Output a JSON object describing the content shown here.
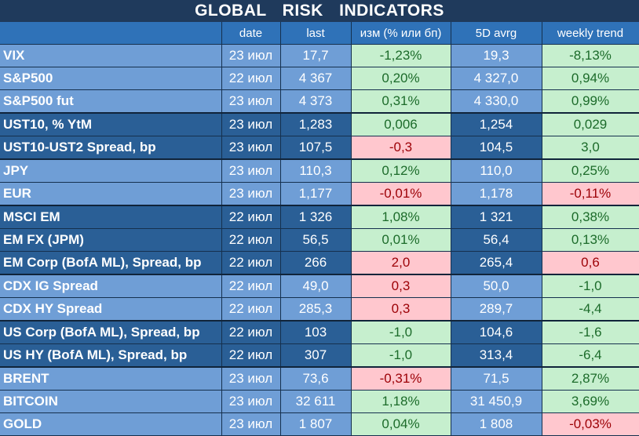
{
  "title": "GLOBAL   RISK   INDICATORS",
  "headers": [
    "",
    "date",
    "last",
    "изм (% или бп)",
    "5D avrg",
    "weekly trend"
  ],
  "rows": [
    {
      "name": "VIX",
      "date": "23 июл",
      "last": "17,7",
      "chg": "-1,23%",
      "chg_sign": "pos",
      "avg": "19,3",
      "wk": "-8,13%",
      "wk_sign": "pos",
      "group": "g-light",
      "sep": false
    },
    {
      "name": "S&P500",
      "date": "22 июл",
      "last": "4 367",
      "chg": "0,20%",
      "chg_sign": "pos",
      "avg": "4 327,0",
      "wk": "0,94%",
      "wk_sign": "pos",
      "group": "g-light",
      "sep": false
    },
    {
      "name": "S&P500 fut",
      "date": "23 июл",
      "last": "4 373",
      "chg": "0,31%",
      "chg_sign": "pos",
      "avg": "4 330,0",
      "wk": "0,99%",
      "wk_sign": "pos",
      "group": "g-light",
      "sep": false
    },
    {
      "name": "UST10, % YtM",
      "date": "23 июл",
      "last": "1,283",
      "chg": "0,006",
      "chg_sign": "pos",
      "avg": "1,254",
      "wk": "0,029",
      "wk_sign": "pos",
      "group": "g-dark",
      "sep": true
    },
    {
      "name": "UST10-UST2 Spread, bp",
      "date": "23 июл",
      "last": "107,5",
      "chg": "-0,3",
      "chg_sign": "neg",
      "avg": "104,5",
      "wk": "3,0",
      "wk_sign": "pos",
      "group": "g-dark",
      "sep": false
    },
    {
      "name": "JPY",
      "date": "23 июл",
      "last": "110,3",
      "chg": "0,12%",
      "chg_sign": "pos",
      "avg": "110,0",
      "wk": "0,25%",
      "wk_sign": "pos",
      "group": "g-light",
      "sep": true
    },
    {
      "name": "EUR",
      "date": "23 июл",
      "last": "1,177",
      "chg": "-0,01%",
      "chg_sign": "neg",
      "avg": "1,178",
      "wk": "-0,11%",
      "wk_sign": "neg",
      "group": "g-light",
      "sep": false
    },
    {
      "name": "MSCI EM",
      "date": "22 июл",
      "last": "1 326",
      "chg": "1,08%",
      "chg_sign": "pos",
      "avg": "1 321",
      "wk": "0,38%",
      "wk_sign": "pos",
      "group": "g-dark",
      "sep": true
    },
    {
      "name": "EM FX (JPM)",
      "date": "22 июл",
      "last": "56,5",
      "chg": "0,01%",
      "chg_sign": "pos",
      "avg": "56,4",
      "wk": "0,13%",
      "wk_sign": "pos",
      "group": "g-dark",
      "sep": false
    },
    {
      "name": "EM Corp (BofA ML), Spread, bp",
      "date": "22 июл",
      "last": "266",
      "chg": "2,0",
      "chg_sign": "neg",
      "avg": "265,4",
      "wk": "0,6",
      "wk_sign": "neg",
      "group": "g-dark",
      "sep": false
    },
    {
      "name": "CDX IG Spread",
      "date": "22 июл",
      "last": "49,0",
      "chg": "0,3",
      "chg_sign": "neg",
      "avg": "50,0",
      "wk": "-1,0",
      "wk_sign": "pos",
      "group": "g-light",
      "sep": true
    },
    {
      "name": "CDX HY Spread",
      "date": "22 июл",
      "last": "285,3",
      "chg": "0,3",
      "chg_sign": "neg",
      "avg": "289,7",
      "wk": "-4,4",
      "wk_sign": "pos",
      "group": "g-light",
      "sep": false
    },
    {
      "name": "US Corp (BofA ML), Spread, bp",
      "date": "22 июл",
      "last": "103",
      "chg": "-1,0",
      "chg_sign": "pos",
      "avg": "104,6",
      "wk": "-1,6",
      "wk_sign": "pos",
      "group": "g-dark",
      "sep": true
    },
    {
      "name": "US HY (BofA ML), Spread, bp",
      "date": "22 июл",
      "last": "307",
      "chg": "-1,0",
      "chg_sign": "pos",
      "avg": "313,4",
      "wk": "-6,4",
      "wk_sign": "pos",
      "group": "g-dark",
      "sep": false
    },
    {
      "name": "BRENT",
      "date": "23 июл",
      "last": "73,6",
      "chg": "-0,31%",
      "chg_sign": "neg",
      "avg": "71,5",
      "wk": "2,87%",
      "wk_sign": "pos",
      "group": "g-light",
      "sep": true
    },
    {
      "name": "BITCOIN",
      "date": "23 июл",
      "last": "32 611",
      "chg": "1,18%",
      "chg_sign": "pos",
      "avg": "31 450,9",
      "wk": "3,69%",
      "wk_sign": "pos",
      "group": "g-light",
      "sep": false
    },
    {
      "name": "GOLD",
      "date": "23 июл",
      "last": "1 807",
      "chg": "0,04%",
      "chg_sign": "pos",
      "avg": "1 808",
      "wk": "-0,03%",
      "wk_sign": "neg",
      "group": "g-light",
      "sep": false
    }
  ]
}
